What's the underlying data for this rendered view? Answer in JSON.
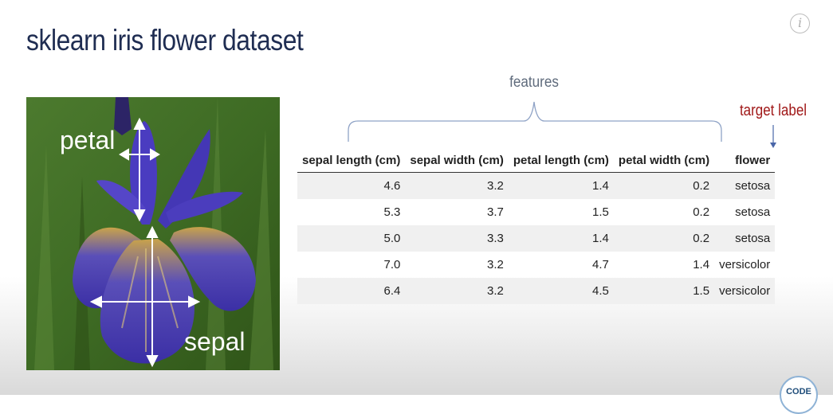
{
  "slide": {
    "title": "sklearn iris flower dataset"
  },
  "info_icon": {
    "glyph": "i",
    "icon": "info-icon"
  },
  "photo": {
    "petal_label": "petal",
    "sepal_label": "sepal"
  },
  "annotations": {
    "features_label": "features",
    "target_label": "target label"
  },
  "table": {
    "headers": [
      "sepal length (cm)",
      "sepal width (cm)",
      "petal length (cm)",
      "petal width (cm)",
      "flower"
    ],
    "rows": [
      [
        "4.6",
        "3.2",
        "1.4",
        "0.2",
        "setosa"
      ],
      [
        "5.3",
        "3.7",
        "1.5",
        "0.2",
        "setosa"
      ],
      [
        "5.0",
        "3.3",
        "1.4",
        "0.2",
        "setosa"
      ],
      [
        "7.0",
        "3.2",
        "4.7",
        "1.4",
        "versicolor"
      ],
      [
        "6.4",
        "3.2",
        "4.5",
        "1.5",
        "versicolor"
      ]
    ]
  },
  "logo": {
    "text": "CODE"
  },
  "colors": {
    "title": "#1f2d52",
    "target_label": "#a01818",
    "features_label": "#5f6b7c",
    "row_stripe": "#f0f0f0"
  }
}
